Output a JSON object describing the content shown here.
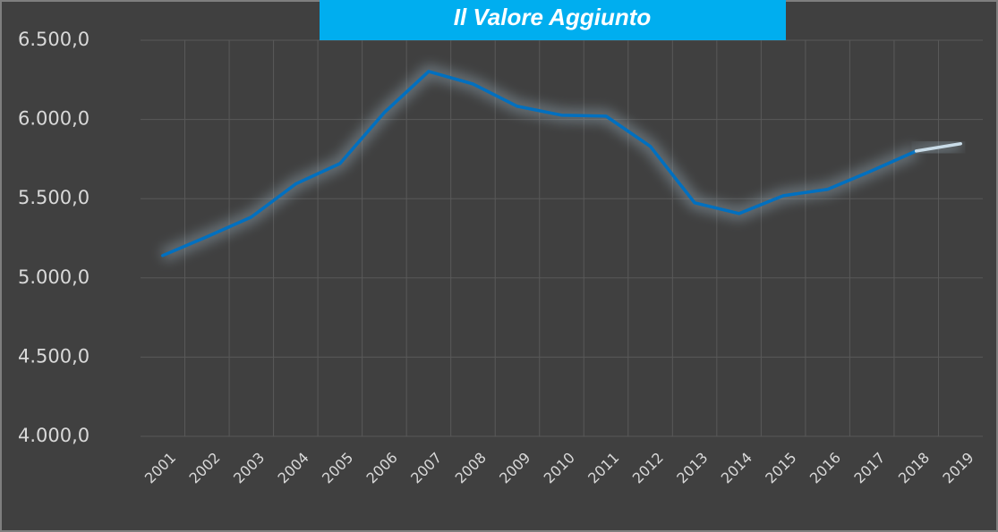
{
  "chart_data": {
    "type": "line",
    "title": "Il Valore Aggiunto",
    "categories": [
      "2001",
      "2002",
      "2003",
      "2004",
      "2005",
      "2006",
      "2007",
      "2008",
      "2009",
      "2010",
      "2011",
      "2012",
      "2013",
      "2014",
      "2015",
      "2016",
      "2017",
      "2018",
      "2019"
    ],
    "series": [
      {
        "color": "#0070c0",
        "values": [
          5141,
          5260,
          5384,
          5593,
          5722,
          6044,
          6303,
          6224,
          6083,
          6027,
          6021,
          5830,
          5474,
          5406,
          5519,
          5559,
          5677,
          5801,
          null
        ]
      },
      {
        "color": "#c9dce8",
        "values": [
          null,
          null,
          null,
          null,
          null,
          null,
          null,
          null,
          null,
          null,
          null,
          null,
          null,
          null,
          null,
          null,
          null,
          5801,
          5847
        ]
      }
    ],
    "ylim": [
      4000,
      6500
    ],
    "yticks": [
      {
        "value": 4000,
        "label": "4.000,0"
      },
      {
        "value": 4500,
        "label": "4.500,0"
      },
      {
        "value": 5000,
        "label": "5.000,0"
      },
      {
        "value": 5500,
        "label": "5.500,0"
      },
      {
        "value": 6000,
        "label": "6.000,0"
      },
      {
        "value": 6500,
        "label": "6.500,0"
      }
    ],
    "grid": true
  }
}
